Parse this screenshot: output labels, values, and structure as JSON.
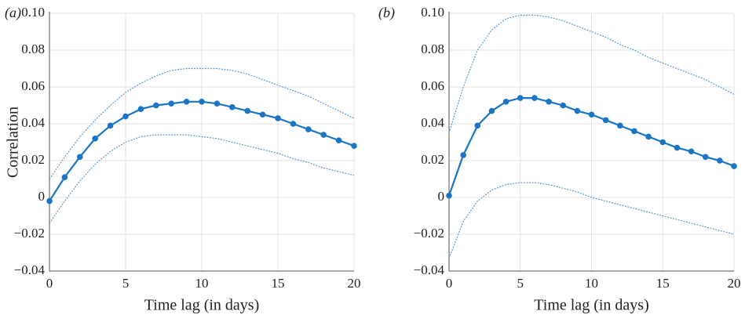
{
  "chart_data": [
    {
      "type": "line",
      "title": "(a)",
      "xlabel": "Time lag (in days)",
      "ylabel": "Correlation",
      "x": [
        0,
        1,
        2,
        3,
        4,
        5,
        6,
        7,
        8,
        9,
        10,
        11,
        12,
        13,
        14,
        15,
        16,
        17,
        18,
        19,
        20
      ],
      "xlim": [
        0,
        20
      ],
      "xticks": [
        0,
        5,
        10,
        15,
        20
      ],
      "ylim": [
        -0.04,
        0.1
      ],
      "yticks": [
        {
          "value": -0.04,
          "label": "−0.04"
        },
        {
          "value": -0.02,
          "label": "−0.02"
        },
        0,
        0.02,
        0.04,
        0.06,
        0.08,
        {
          "value": 0.1,
          "label": "0.10"
        }
      ],
      "grid": true,
      "series": [
        {
          "color": "#1a75c4",
          "style": "solid",
          "marker": true,
          "values": [
            -0.002,
            0.011,
            0.022,
            0.032,
            0.039,
            0.044,
            0.048,
            0.05,
            0.051,
            0.052,
            0.052,
            0.051,
            0.049,
            0.047,
            0.045,
            0.043,
            0.04,
            0.037,
            0.034,
            0.031,
            0.028
          ]
        },
        {
          "color": "#5b9bd5",
          "style": "dashed",
          "marker": false,
          "values": [
            0.01,
            0.022,
            0.033,
            0.042,
            0.05,
            0.057,
            0.062,
            0.066,
            0.069,
            0.07,
            0.07,
            0.07,
            0.069,
            0.067,
            0.064,
            0.061,
            0.058,
            0.055,
            0.051,
            0.047,
            0.043
          ]
        },
        {
          "color": "#5b9bd5",
          "style": "dashed",
          "marker": false,
          "values": [
            -0.014,
            -0.002,
            0.009,
            0.018,
            0.025,
            0.03,
            0.033,
            0.034,
            0.034,
            0.034,
            0.033,
            0.032,
            0.03,
            0.028,
            0.026,
            0.024,
            0.021,
            0.019,
            0.016,
            0.014,
            0.012
          ]
        }
      ]
    },
    {
      "type": "line",
      "title": "(b)",
      "xlabel": "Time lag (in days)",
      "x": [
        0,
        1,
        2,
        3,
        4,
        5,
        6,
        7,
        8,
        9,
        10,
        11,
        12,
        13,
        14,
        15,
        16,
        17,
        18,
        19,
        20
      ],
      "xlim": [
        0,
        20
      ],
      "xticks": [
        0,
        5,
        10,
        15,
        20
      ],
      "ylim": [
        -0.04,
        0.1
      ],
      "yticks": [
        {
          "value": -0.04,
          "label": "−0.04"
        },
        {
          "value": -0.02,
          "label": "−0.02"
        },
        0,
        0.02,
        0.04,
        0.06,
        0.08,
        {
          "value": 0.1,
          "label": "0.10"
        }
      ],
      "grid": true,
      "series": [
        {
          "color": "#1a75c4",
          "style": "solid",
          "marker": true,
          "values": [
            0.001,
            0.023,
            0.039,
            0.047,
            0.052,
            0.054,
            0.054,
            0.052,
            0.05,
            0.047,
            0.045,
            0.042,
            0.039,
            0.036,
            0.033,
            0.03,
            0.027,
            0.025,
            0.022,
            0.02,
            0.017
          ]
        },
        {
          "color": "#5b9bd5",
          "style": "dashed",
          "marker": false,
          "values": [
            0.035,
            0.06,
            0.08,
            0.091,
            0.097,
            0.099,
            0.099,
            0.098,
            0.096,
            0.093,
            0.09,
            0.087,
            0.083,
            0.08,
            0.076,
            0.073,
            0.07,
            0.067,
            0.064,
            0.06,
            0.056
          ]
        },
        {
          "color": "#5b9bd5",
          "style": "dashed",
          "marker": false,
          "values": [
            -0.033,
            -0.013,
            -0.002,
            0.004,
            0.007,
            0.008,
            0.008,
            0.007,
            0.005,
            0.003,
            0.0,
            -0.002,
            -0.004,
            -0.006,
            -0.008,
            -0.01,
            -0.012,
            -0.014,
            -0.016,
            -0.018,
            -0.02
          ]
        }
      ]
    }
  ]
}
